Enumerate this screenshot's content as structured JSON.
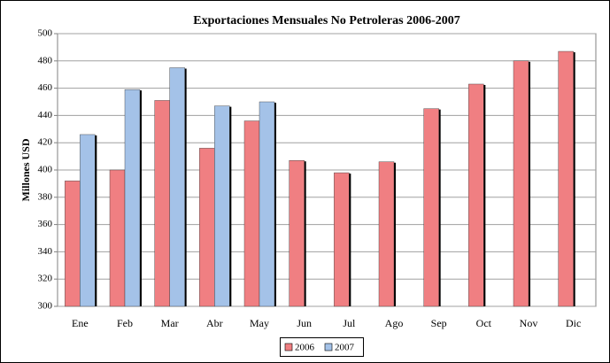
{
  "chart_data": {
    "type": "bar",
    "title": "Exportaciones Mensuales No Petroleras 2006-2007",
    "y_label": "Millones USD",
    "categories": [
      "Ene",
      "Feb",
      "Mar",
      "Abr",
      "May",
      "Jun",
      "Jul",
      "Ago",
      "Sep",
      "Oct",
      "Nov",
      "Dic"
    ],
    "series": [
      {
        "name": "2006",
        "color": "#f07f82",
        "values": [
          392,
          400,
          451,
          416,
          436,
          407,
          398,
          406,
          445,
          463,
          480,
          487
        ]
      },
      {
        "name": "2007",
        "color": "#a4c2e8",
        "values": [
          426,
          459,
          475,
          447,
          450,
          null,
          null,
          null,
          null,
          null,
          null,
          null
        ]
      }
    ],
    "ylim": [
      300,
      500
    ],
    "yticks": [
      300,
      320,
      340,
      360,
      380,
      400,
      420,
      440,
      460,
      480,
      500
    ],
    "grid": true,
    "legend": "bottom"
  }
}
